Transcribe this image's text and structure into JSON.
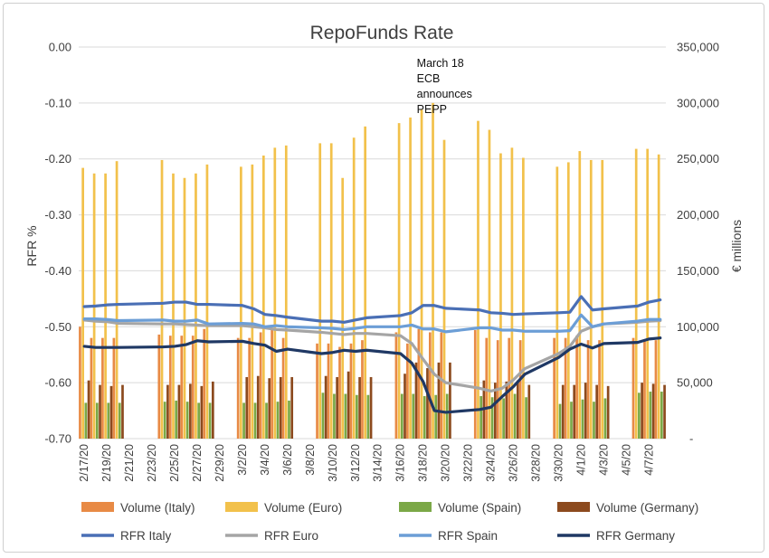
{
  "chart_data": {
    "type": "bar+line",
    "title": "RepoFunds Rate",
    "ylabel_left": "RFR %",
    "ylabel_right": "€ millions",
    "ylim_left": [
      -0.7,
      0.0
    ],
    "ylim_right": [
      0,
      350000
    ],
    "left_ticks": [
      "0.00",
      "-0.10",
      "-0.20",
      "-0.30",
      "-0.40",
      "-0.50",
      "-0.60",
      "-0.70"
    ],
    "left_tick_values": [
      0.0,
      -0.1,
      -0.2,
      -0.3,
      -0.4,
      -0.5,
      -0.6,
      -0.7
    ],
    "right_ticks": [
      "350,000",
      "300,000",
      "250,000",
      "200,000",
      "150,000",
      "100,000",
      "50,000",
      "-"
    ],
    "right_tick_values": [
      350000,
      300000,
      250000,
      200000,
      150000,
      100000,
      50000,
      0
    ],
    "x_start": "2020-02-17",
    "x_end": "2020-04-08",
    "x_tick_labels": [
      "2/17/20",
      "2/19/20",
      "2/21/20",
      "2/23/20",
      "2/25/20",
      "2/27/20",
      "2/29/20",
      "3/2/20",
      "3/4/20",
      "3/6/20",
      "3/8/20",
      "3/10/20",
      "3/12/20",
      "3/14/20",
      "3/16/20",
      "3/18/20",
      "3/20/20",
      "3/22/20",
      "3/24/20",
      "3/26/20",
      "3/28/20",
      "3/30/20",
      "4/1/20",
      "4/3/20",
      "4/5/20",
      "4/7/20"
    ],
    "x_tick_dates": [
      "2020-02-17",
      "2020-02-19",
      "2020-02-21",
      "2020-02-23",
      "2020-02-25",
      "2020-02-27",
      "2020-02-29",
      "2020-03-02",
      "2020-03-04",
      "2020-03-06",
      "2020-03-08",
      "2020-03-10",
      "2020-03-12",
      "2020-03-14",
      "2020-03-16",
      "2020-03-18",
      "2020-03-20",
      "2020-03-22",
      "2020-03-24",
      "2020-03-26",
      "2020-03-28",
      "2020-03-30",
      "2020-04-01",
      "2020-04-03",
      "2020-04-05",
      "2020-04-07"
    ],
    "annotation": {
      "lines": [
        "March 18",
        "ECB",
        "announces",
        "PEPP"
      ],
      "date": "2020-03-18"
    },
    "dates": [
      "2020-02-17",
      "2020-02-18",
      "2020-02-19",
      "2020-02-20",
      "2020-02-24",
      "2020-02-25",
      "2020-02-26",
      "2020-02-27",
      "2020-02-28",
      "2020-03-02",
      "2020-03-03",
      "2020-03-04",
      "2020-03-05",
      "2020-03-06",
      "2020-03-09",
      "2020-03-10",
      "2020-03-11",
      "2020-03-12",
      "2020-03-13",
      "2020-03-16",
      "2020-03-17",
      "2020-03-18",
      "2020-03-19",
      "2020-03-20",
      "2020-03-23",
      "2020-03-24",
      "2020-03-25",
      "2020-03-26",
      "2020-03-27",
      "2020-03-30",
      "2020-03-31",
      "2020-04-01",
      "2020-04-02",
      "2020-04-03",
      "2020-04-06",
      "2020-04-07",
      "2020-04-08"
    ],
    "bar_series": [
      {
        "name": "Volume (Italy)",
        "color": "#E88A45",
        "values": [
          100000,
          90000,
          90000,
          90000,
          93000,
          92000,
          92000,
          92000,
          98000,
          90000,
          90000,
          95000,
          98000,
          90000,
          85000,
          85000,
          82000,
          85000,
          88000,
          95000,
          85000,
          98000,
          95000,
          95000,
          97000,
          90000,
          88000,
          90000,
          88000,
          90000,
          90000,
          92000,
          88000,
          88000,
          90000,
          88000,
          88000
        ]
      },
      {
        "name": "Volume (Euro)",
        "color": "#F2C14B",
        "values": [
          242000,
          237000,
          237000,
          248000,
          249000,
          237000,
          233000,
          237000,
          245000,
          243000,
          245000,
          253000,
          260000,
          262000,
          264000,
          264000,
          233000,
          269000,
          279000,
          282000,
          287000,
          294000,
          300000,
          267000,
          284000,
          276000,
          255000,
          260000,
          251000,
          243000,
          247000,
          257000,
          249000,
          249000,
          259000,
          259000,
          254000
        ]
      },
      {
        "name": "Volume (Spain)",
        "color": "#7BA847",
        "values": [
          32000,
          32000,
          32000,
          32000,
          33000,
          34000,
          33000,
          32000,
          32000,
          32000,
          32000,
          32000,
          33000,
          34000,
          41000,
          40000,
          40000,
          39000,
          39000,
          40000,
          40000,
          38000,
          39000,
          40000,
          38000,
          37000,
          36000,
          40000,
          37000,
          31000,
          33000,
          35000,
          33000,
          36000,
          41000,
          42000,
          42000
        ]
      },
      {
        "name": "Volume (Germany)",
        "color": "#8C4A1E",
        "values": [
          52000,
          48000,
          47000,
          48000,
          48000,
          48000,
          49000,
          47000,
          51000,
          55000,
          56000,
          54000,
          55000,
          55000,
          56000,
          55000,
          60000,
          55000,
          55000,
          58000,
          68000,
          63000,
          68000,
          68000,
          52000,
          50000,
          51000,
          52000,
          48000,
          48000,
          48000,
          50000,
          48000,
          47000,
          50000,
          49000,
          48000
        ]
      }
    ],
    "line_series": [
      {
        "name": "RFR Italy",
        "color": "#4A6FB5",
        "width": 3.2,
        "values": [
          -0.464,
          -0.463,
          -0.461,
          -0.46,
          -0.458,
          -0.456,
          -0.456,
          -0.46,
          -0.46,
          -0.462,
          -0.468,
          -0.478,
          -0.48,
          -0.483,
          -0.49,
          -0.49,
          -0.492,
          -0.488,
          -0.484,
          -0.48,
          -0.475,
          -0.462,
          -0.462,
          -0.467,
          -0.47,
          -0.475,
          -0.476,
          -0.478,
          -0.477,
          -0.475,
          -0.474,
          -0.446,
          -0.47,
          -0.468,
          -0.463,
          -0.456,
          -0.452
        ]
      },
      {
        "name": "RFR Euro",
        "color": "#A5A5A5",
        "width": 3.2,
        "values": [
          -0.488,
          -0.49,
          -0.491,
          -0.494,
          -0.495,
          -0.495,
          -0.496,
          -0.497,
          -0.498,
          -0.498,
          -0.5,
          -0.502,
          -0.505,
          -0.506,
          -0.51,
          -0.512,
          -0.514,
          -0.512,
          -0.512,
          -0.516,
          -0.53,
          -0.558,
          -0.585,
          -0.6,
          -0.61,
          -0.615,
          -0.61,
          -0.595,
          -0.575,
          -0.548,
          -0.535,
          -0.508,
          -0.5,
          -0.495,
          -0.492,
          -0.49,
          -0.489
        ]
      },
      {
        "name": "RFR Spain",
        "color": "#6C9ED6",
        "width": 3.2,
        "values": [
          -0.486,
          -0.486,
          -0.487,
          -0.489,
          -0.488,
          -0.49,
          -0.49,
          -0.488,
          -0.495,
          -0.494,
          -0.495,
          -0.5,
          -0.498,
          -0.5,
          -0.502,
          -0.503,
          -0.505,
          -0.503,
          -0.5,
          -0.5,
          -0.497,
          -0.504,
          -0.504,
          -0.509,
          -0.502,
          -0.502,
          -0.506,
          -0.506,
          -0.508,
          -0.508,
          -0.507,
          -0.479,
          -0.5,
          -0.495,
          -0.49,
          -0.487,
          -0.487
        ]
      },
      {
        "name": "RFR Germany",
        "color": "#1F3864",
        "width": 3.2,
        "values": [
          -0.535,
          -0.537,
          -0.537,
          -0.537,
          -0.536,
          -0.535,
          -0.532,
          -0.525,
          -0.527,
          -0.526,
          -0.53,
          -0.533,
          -0.544,
          -0.54,
          -0.548,
          -0.546,
          -0.542,
          -0.544,
          -0.542,
          -0.548,
          -0.565,
          -0.598,
          -0.65,
          -0.653,
          -0.648,
          -0.644,
          -0.625,
          -0.607,
          -0.585,
          -0.555,
          -0.54,
          -0.531,
          -0.538,
          -0.53,
          -0.528,
          -0.522,
          -0.52
        ]
      }
    ]
  }
}
